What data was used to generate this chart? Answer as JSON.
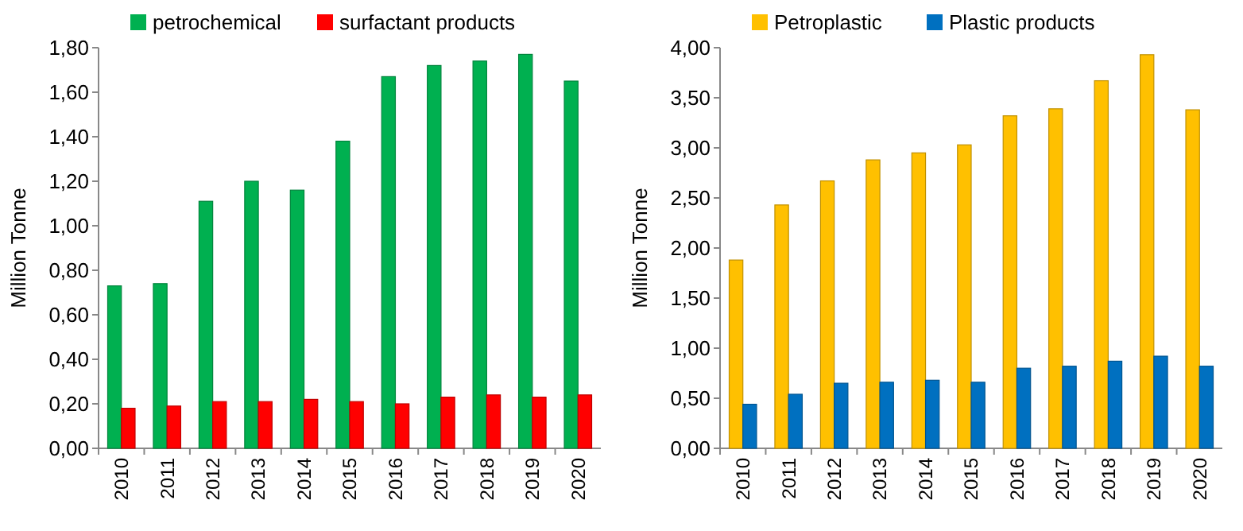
{
  "chart_data": [
    {
      "type": "bar",
      "ylabel": "Million Tonne",
      "categories": [
        "2010",
        "2011",
        "2012",
        "2013",
        "2014",
        "2015",
        "2016",
        "2017",
        "2018",
        "2019",
        "2020"
      ],
      "series": [
        {
          "name": "petrochemical",
          "color": "#00b050",
          "values": [
            0.73,
            0.74,
            1.11,
            1.2,
            1.16,
            1.38,
            1.67,
            1.72,
            1.74,
            1.77,
            1.65
          ]
        },
        {
          "name": "surfactant products",
          "color": "#ff0000",
          "values": [
            0.18,
            0.19,
            0.21,
            0.21,
            0.22,
            0.21,
            0.2,
            0.23,
            0.24,
            0.23,
            0.24
          ]
        }
      ],
      "ylim": [
        0,
        1.8
      ],
      "yticks": [
        {
          "value": 0,
          "label": "0,00"
        },
        {
          "value": 0.2,
          "label": "0,20"
        },
        {
          "value": 0.4,
          "label": "0,40"
        },
        {
          "value": 0.6,
          "label": "0,60"
        },
        {
          "value": 0.8,
          "label": "0,80"
        },
        {
          "value": 1,
          "label": "1,00"
        },
        {
          "value": 1.2,
          "label": "1,20"
        },
        {
          "value": 1.4,
          "label": "1,40"
        },
        {
          "value": 1.6,
          "label": "1,60"
        },
        {
          "value": 1.8,
          "label": "1,80"
        }
      ],
      "grid": false,
      "legend": "top"
    },
    {
      "type": "bar",
      "ylabel": "Million Tonne",
      "categories": [
        "2010",
        "2011",
        "2012",
        "2013",
        "2014",
        "2015",
        "2016",
        "2017",
        "2018",
        "2019",
        "2020"
      ],
      "series": [
        {
          "name": "Petroplastic",
          "color": "#ffc000",
          "values": [
            1.88,
            2.43,
            2.67,
            2.88,
            2.95,
            3.03,
            3.32,
            3.39,
            3.67,
            3.93,
            3.38
          ]
        },
        {
          "name": "Plastic products",
          "color": "#0070c0",
          "values": [
            0.44,
            0.54,
            0.65,
            0.66,
            0.68,
            0.66,
            0.8,
            0.82,
            0.87,
            0.92,
            0.82
          ]
        }
      ],
      "ylim": [
        0,
        4
      ],
      "yticks": [
        {
          "value": 0,
          "label": "0,00"
        },
        {
          "value": 0.5,
          "label": "0,50"
        },
        {
          "value": 1,
          "label": "1,00"
        },
        {
          "value": 1.5,
          "label": "1,50"
        },
        {
          "value": 2,
          "label": "2,00"
        },
        {
          "value": 2.5,
          "label": "2,50"
        },
        {
          "value": 3,
          "label": "3,00"
        },
        {
          "value": 3.5,
          "label": "3,50"
        },
        {
          "value": 4,
          "label": "4,00"
        }
      ],
      "grid": false,
      "legend": "top"
    }
  ]
}
